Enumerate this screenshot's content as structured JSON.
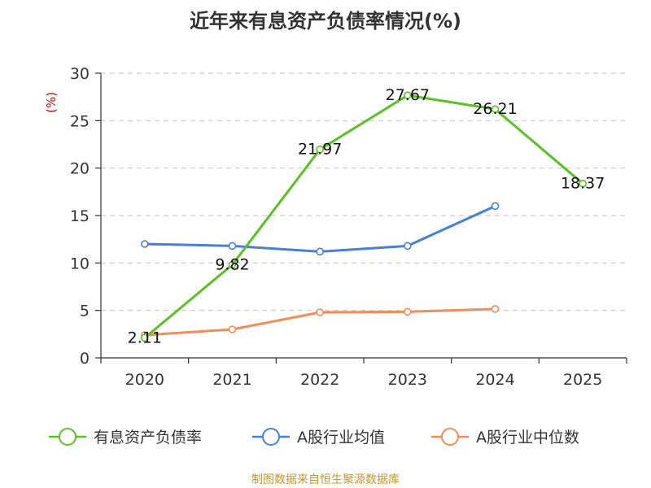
{
  "chart_data": {
    "type": "line",
    "title": "近年来有息资产负债率情况(%)",
    "ylabel": "(%)",
    "xlabel": "",
    "categories": [
      "2020",
      "2021",
      "2022",
      "2023",
      "2024",
      "2025"
    ],
    "ylim": [
      0,
      30
    ],
    "yticks": [
      0,
      5,
      10,
      15,
      20,
      25,
      30
    ],
    "grid": true,
    "legend_position": "bottom",
    "series": [
      {
        "name": "有息资产负债率",
        "color": "#5cc026",
        "values": [
          2.11,
          9.82,
          21.97,
          27.67,
          26.21,
          18.37
        ],
        "labels": [
          "2.11",
          "9.82",
          "21.97",
          "27.67",
          "26.21",
          "18.37"
        ]
      },
      {
        "name": "A股行业均值",
        "color": "#4a7fd6",
        "values": [
          12.0,
          11.8,
          11.2,
          11.8,
          16.0,
          null
        ]
      },
      {
        "name": "A股行业中位数",
        "color": "#f28c5b",
        "values": [
          2.4,
          3.0,
          4.8,
          4.85,
          5.15,
          null
        ]
      }
    ]
  },
  "source": "制图数据来自恒生聚源数据库"
}
